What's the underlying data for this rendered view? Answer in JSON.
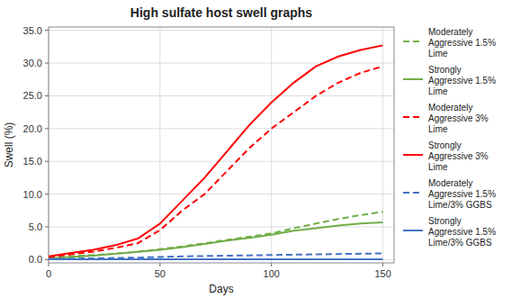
{
  "chart_data": {
    "type": "line",
    "title": "High sulfate host swell graphs",
    "x_label": "Days",
    "y_label": "Swell (%)",
    "xlim": [
      0,
      155
    ],
    "ylim": [
      -0.5,
      35.5
    ],
    "xticks": [
      0,
      50,
      100,
      150
    ],
    "yticks": [
      {
        "value": 0.0,
        "label": "0.0"
      },
      {
        "value": 5.0,
        "label": "5.0"
      },
      {
        "value": 10.0,
        "label": "10.0"
      },
      {
        "value": 15.0,
        "label": "15.0"
      },
      {
        "value": 20.0,
        "label": "20.0"
      },
      {
        "value": 25.0,
        "label": "25.0"
      },
      {
        "value": 30.0,
        "label": "30.0"
      },
      {
        "value": 35.0,
        "label": "35.0"
      }
    ],
    "grid": true,
    "legend": "right",
    "x": [
      0,
      10,
      20,
      30,
      40,
      50,
      60,
      70,
      80,
      90,
      100,
      110,
      120,
      130,
      140,
      150
    ],
    "series": [
      {
        "name": "Moderately\nAggressive 1.5%\nLime",
        "color": "#70AD47",
        "line_style": "dashed",
        "values": [
          0.3,
          0.5,
          0.7,
          0.9,
          1.2,
          1.6,
          2.0,
          2.5,
          3.0,
          3.5,
          4.0,
          4.8,
          5.5,
          6.2,
          6.8,
          7.3
        ]
      },
      {
        "name": "Strongly\nAggressive 1.5%\nLime",
        "color": "#70AD47",
        "line_style": "solid",
        "values": [
          0.2,
          0.4,
          0.6,
          0.9,
          1.2,
          1.5,
          1.9,
          2.4,
          2.9,
          3.3,
          3.8,
          4.4,
          4.8,
          5.2,
          5.5,
          5.7
        ]
      },
      {
        "name": "Moderately\nAggressive 3%\nLime",
        "color": "#FF0000",
        "line_style": "dashed",
        "values": [
          0.4,
          0.8,
          1.2,
          1.8,
          2.5,
          4.5,
          7.5,
          10.0,
          13.5,
          17.0,
          20.0,
          22.5,
          25.0,
          27.0,
          28.5,
          29.5
        ]
      },
      {
        "name": "Strongly\nAggressive 3%\nLime",
        "color": "#FF0000",
        "line_style": "solid",
        "values": [
          0.5,
          1.0,
          1.5,
          2.2,
          3.2,
          5.5,
          9.0,
          12.5,
          16.5,
          20.5,
          24.0,
          27.0,
          29.5,
          31.0,
          32.0,
          32.7
        ]
      },
      {
        "name": "Moderately\nAggressive 1.5%\nLime/3% GGBS",
        "color": "#4472C4",
        "line_style": "dashed",
        "values": [
          0.1,
          0.15,
          0.2,
          0.25,
          0.3,
          0.4,
          0.5,
          0.55,
          0.6,
          0.65,
          0.7,
          0.75,
          0.8,
          0.85,
          0.9,
          0.95
        ]
      },
      {
        "name": "Strongly\nAggressive 1.5%\nLime/3% GGBS",
        "color": "#4472C4",
        "line_style": "solid",
        "values": [
          0.05,
          0.05,
          0.05,
          0.05,
          0.05,
          0.05,
          0.05,
          0.05,
          0.05,
          0.05,
          0.05,
          0.05,
          0.05,
          0.05,
          0.05,
          0.05
        ]
      }
    ]
  }
}
